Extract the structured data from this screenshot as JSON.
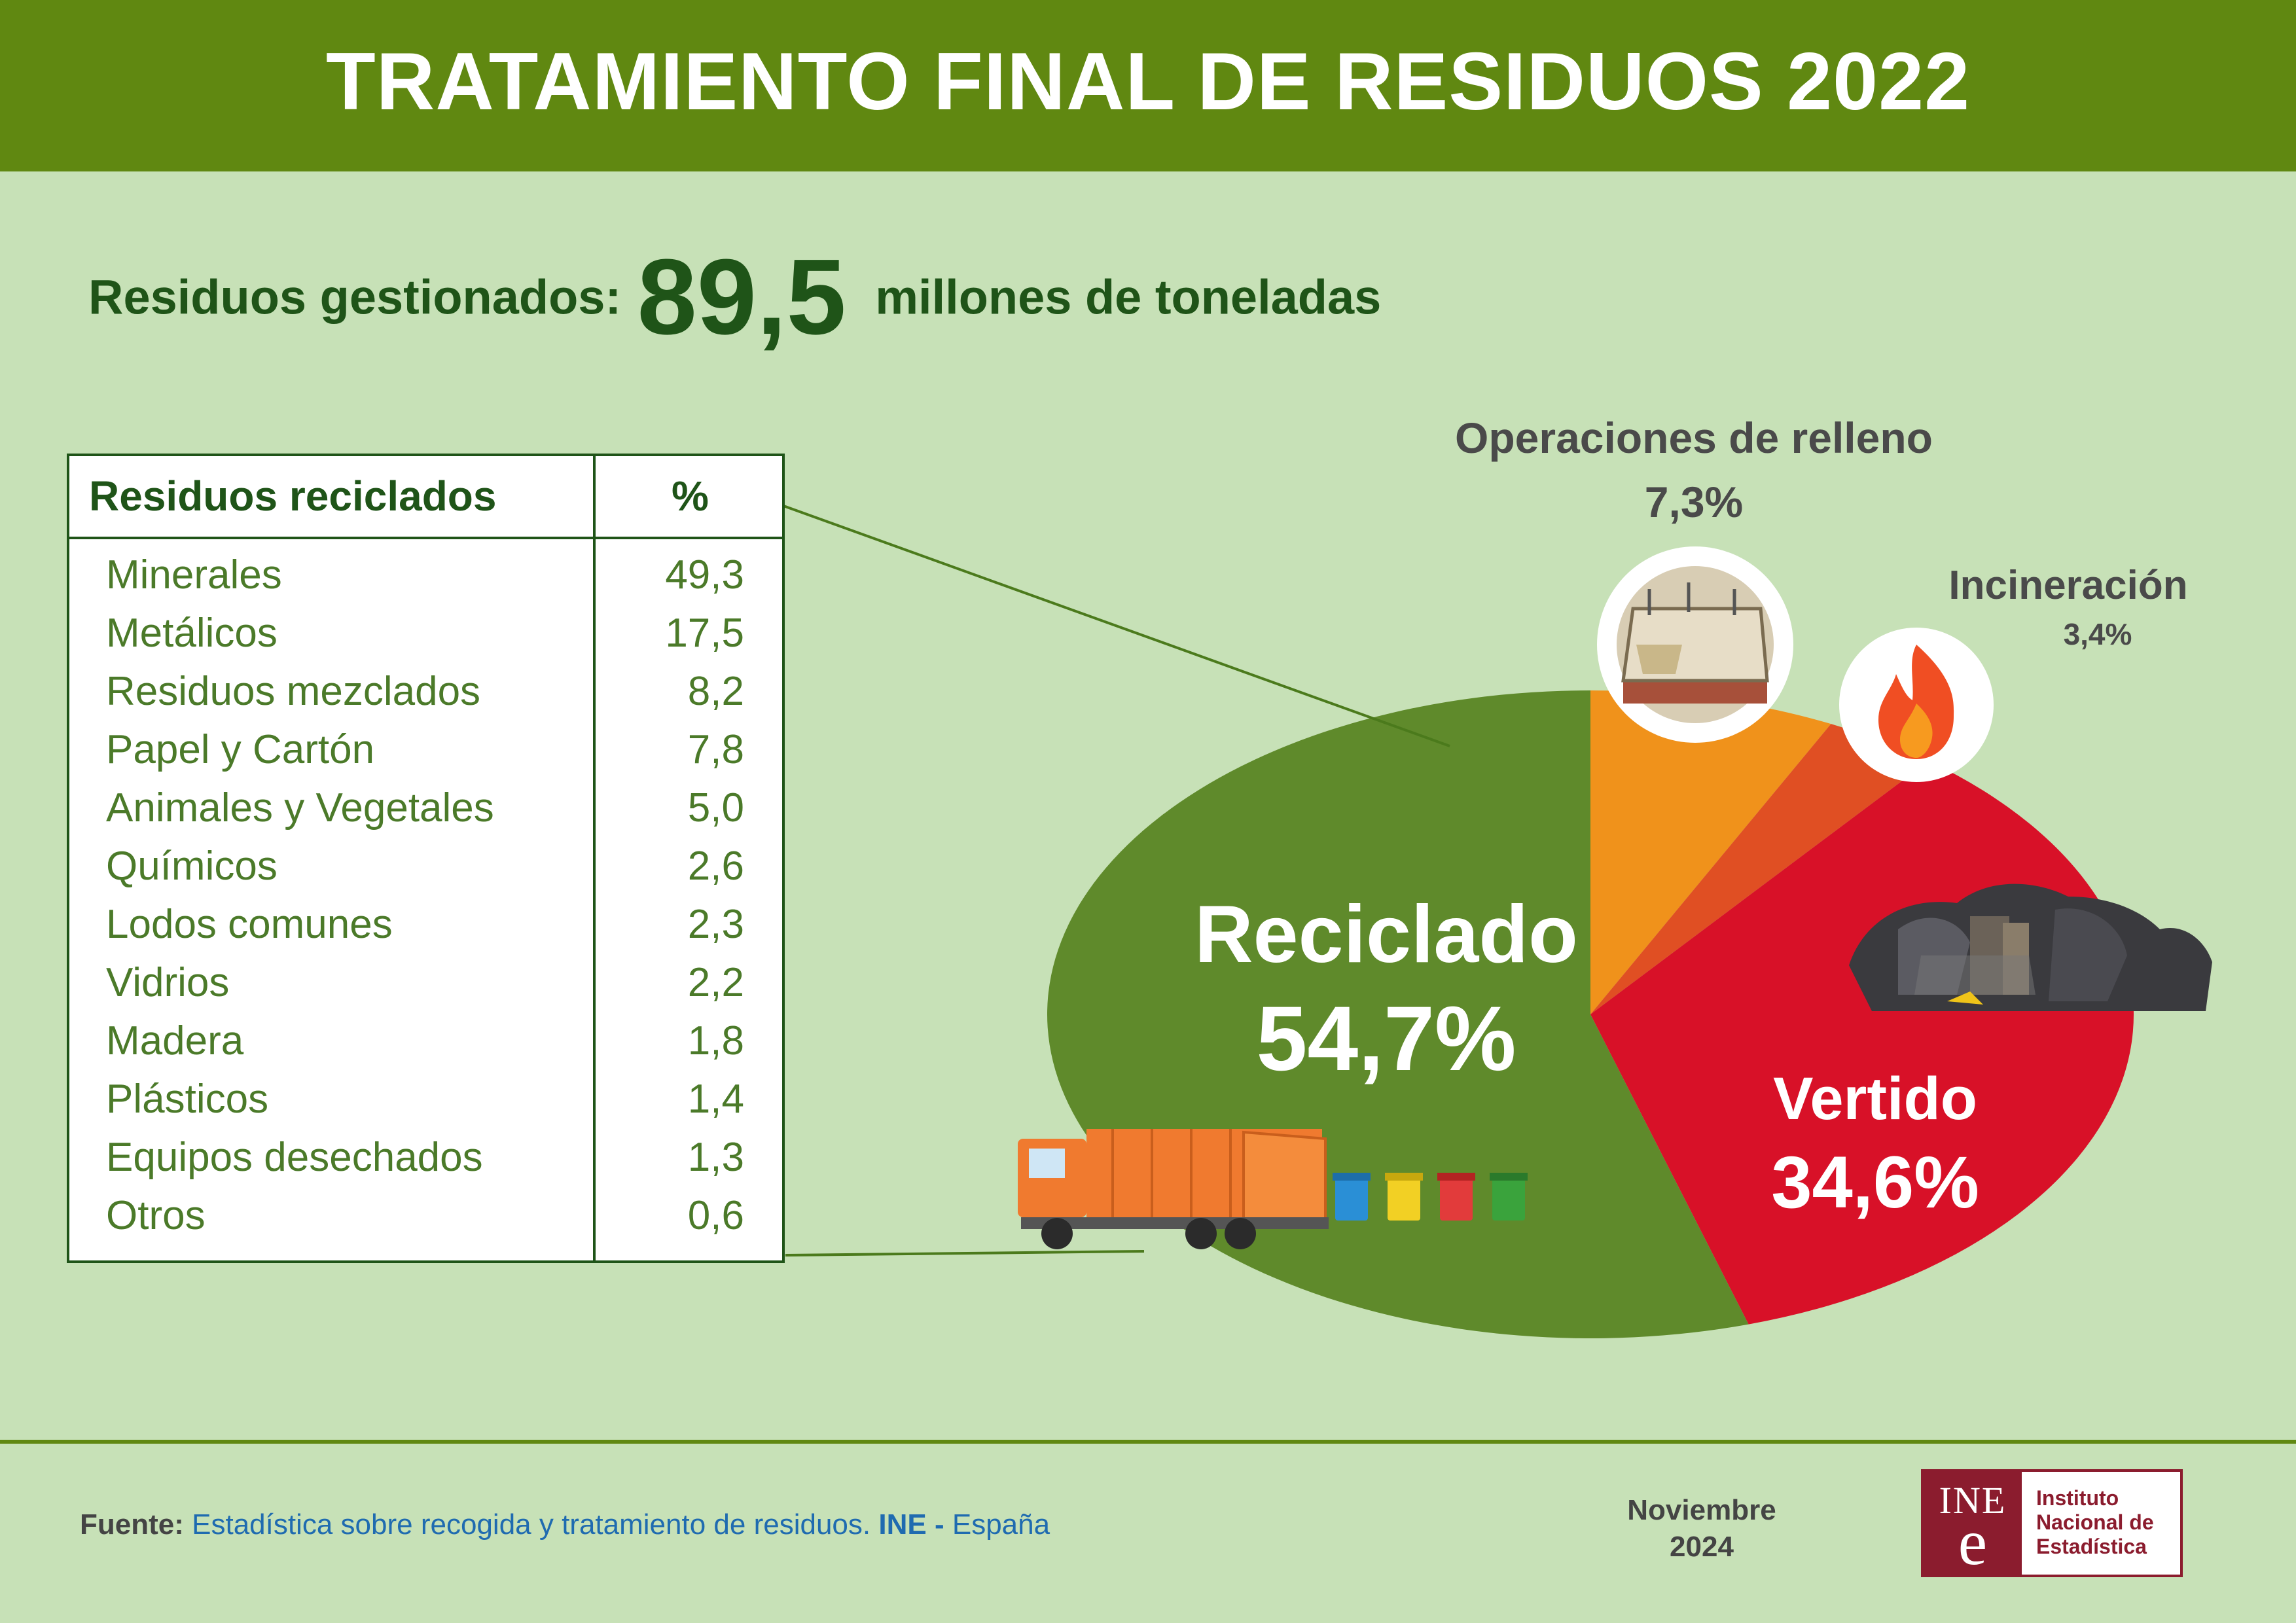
{
  "header": {
    "title": "TRATAMIENTO FINAL DE RESIDUOS 2022"
  },
  "summary": {
    "label": "Residuos gestionados:",
    "value": "89,5",
    "unit": "millones de toneladas"
  },
  "table": {
    "col1": "Residuos reciclados",
    "col2": "%",
    "rows": [
      {
        "name": "Minerales",
        "value": "49,3"
      },
      {
        "name": "Metálicos",
        "value": "17,5"
      },
      {
        "name": "Residuos mezclados",
        "value": "8,2"
      },
      {
        "name": "Papel y Cartón",
        "value": "7,8"
      },
      {
        "name": "Animales y Vegetales",
        "value": "5,0"
      },
      {
        "name": "Químicos",
        "value": "2,6"
      },
      {
        "name": "Lodos comunes",
        "value": "2,3"
      },
      {
        "name": "Vidrios",
        "value": "2,2"
      },
      {
        "name": "Madera",
        "value": "1,8"
      },
      {
        "name": "Plásticos",
        "value": "1,4"
      },
      {
        "name": "Equipos desechados",
        "value": "1,3"
      },
      {
        "name": "Otros",
        "value": "0,6"
      }
    ]
  },
  "chart_data": {
    "type": "pie",
    "title": "",
    "slices": [
      {
        "label": "Reciclado",
        "value": 54.7,
        "display": "54,7%",
        "color": "#5f8a2b",
        "icon": "recycling-truck-icon"
      },
      {
        "label": "Operaciones de relleno",
        "value": 7.3,
        "display": "7,3%",
        "color": "#f0921b",
        "icon": "landfill-site-icon"
      },
      {
        "label": "Incineración",
        "value": 3.4,
        "display": "3,4%",
        "color": "#e04f23",
        "icon": "fire-icon"
      },
      {
        "label": "Vertido",
        "value": 34.6,
        "display": "34,6%",
        "color": "#d81128",
        "icon": "garbage-pile-icon"
      }
    ]
  },
  "footer": {
    "source_label": "Fuente:",
    "source_text": "Estadística sobre recogida y tratamiento de residuos.",
    "source_ine": "INE",
    "source_country": "España",
    "date_month": "Noviembre",
    "date_year": "2024",
    "logo_abbr": "INE",
    "logo_e": "e",
    "logo_line1": "Instituto",
    "logo_line2": "Nacional de",
    "logo_line3": "Estadística"
  }
}
